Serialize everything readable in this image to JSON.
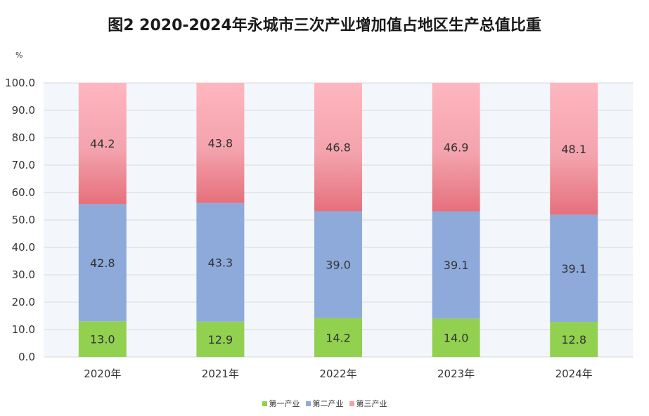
{
  "chart_data": {
    "type": "bar",
    "stacked": true,
    "title": "图2  2020-2024年永城市三次产业增加值占地区生产总值比重",
    "ylabel": "%",
    "xlabel": "",
    "ylim": [
      0,
      100
    ],
    "yticks": [
      "0.0",
      "10.0",
      "20.0",
      "30.0",
      "40.0",
      "50.0",
      "60.0",
      "70.0",
      "80.0",
      "90.0",
      "100.0"
    ],
    "categories": [
      "2020年",
      "2021年",
      "2022年",
      "2023年",
      "2024年"
    ],
    "series": [
      {
        "name": "第一产业",
        "color": "#92d050",
        "values": [
          13.0,
          12.9,
          14.2,
          14.0,
          12.8
        ],
        "labels": [
          "13.0",
          "12.9",
          "14.2",
          "14.0",
          "12.8"
        ]
      },
      {
        "name": "第二产业",
        "color": "#8eaadb",
        "values": [
          42.8,
          43.3,
          39.0,
          39.1,
          39.1
        ],
        "labels": [
          "42.8",
          "43.3",
          "39.0",
          "39.1",
          "39.1"
        ]
      },
      {
        "name": "第三产业",
        "color": "#f4a0aa",
        "values": [
          44.2,
          43.8,
          46.8,
          46.9,
          48.1
        ],
        "labels": [
          "44.2",
          "43.8",
          "46.8",
          "46.9",
          "48.1"
        ]
      }
    ],
    "grid": true,
    "legend_position": "bottom"
  }
}
